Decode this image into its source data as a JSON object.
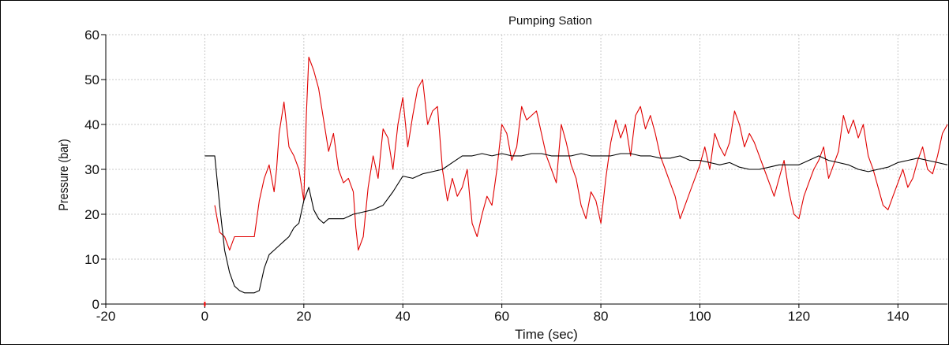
{
  "chart_data": {
    "type": "line",
    "title": "Pumping Sation",
    "xlabel": "Time (sec)",
    "ylabel": "Pressure (bar)",
    "xlim": [
      -20,
      150
    ],
    "ylim": [
      0,
      60
    ],
    "x_ticks": [
      -20,
      0,
      20,
      40,
      60,
      80,
      100,
      120,
      140
    ],
    "y_ticks": [
      0,
      10,
      20,
      30,
      40,
      50,
      60
    ],
    "grid": true,
    "legend": "none",
    "colors": {
      "series_a": "#e00000",
      "series_b": "#000000",
      "grid": "#c8c8c8",
      "origin_marker": "#ff0000"
    },
    "series": [
      {
        "color": "#e00000",
        "x": [
          2,
          3,
          4,
          5,
          6,
          8,
          10,
          11,
          12,
          13,
          14,
          14.5,
          15,
          16,
          17,
          18,
          19,
          20,
          20.5,
          21,
          22,
          23,
          24,
          25,
          26,
          27,
          28,
          29,
          30,
          30.5,
          31,
          32,
          33,
          34,
          35,
          36,
          37,
          38,
          39,
          40,
          41,
          42,
          43,
          44,
          45,
          46,
          47,
          48,
          49,
          50,
          51,
          52,
          53,
          54,
          55,
          56,
          57,
          58,
          59,
          60,
          61,
          62,
          63,
          64,
          65,
          66,
          67,
          68,
          69,
          70,
          71,
          72,
          73,
          74,
          75,
          76,
          77,
          78,
          79,
          80,
          81,
          82,
          83,
          84,
          85,
          86,
          87,
          88,
          89,
          90,
          91,
          92,
          93,
          94,
          95,
          96,
          97,
          98,
          99,
          100,
          101,
          102,
          103,
          104,
          105,
          106,
          107,
          108,
          109,
          110,
          111,
          112,
          113,
          114,
          115,
          116,
          117,
          118,
          119,
          120,
          121,
          122,
          123,
          124,
          125,
          126,
          127,
          128,
          129,
          130,
          131,
          132,
          133,
          134,
          135,
          136,
          137,
          138,
          139,
          140,
          141,
          142,
          143,
          144,
          145,
          146,
          147,
          148,
          149,
          150
        ],
        "y": [
          22,
          16,
          15,
          12,
          15,
          15,
          15,
          23,
          28,
          31,
          25,
          30,
          38,
          45,
          35,
          33,
          30,
          23,
          42,
          55,
          52,
          48,
          41,
          34,
          38,
          30,
          27,
          28,
          25,
          17,
          12,
          15,
          26,
          33,
          28,
          39,
          37,
          30,
          40,
          46,
          35,
          42,
          48,
          50,
          40,
          43,
          44,
          30,
          23,
          28,
          24,
          26,
          30,
          18,
          15,
          20,
          24,
          22,
          30,
          40,
          38,
          32,
          35,
          44,
          41,
          42,
          43,
          38,
          33,
          30,
          27,
          40,
          36,
          31,
          28,
          22,
          19,
          25,
          23,
          18,
          28,
          36,
          41,
          37,
          40,
          33,
          42,
          44,
          39,
          42,
          38,
          33,
          30,
          27,
          24,
          19,
          22,
          25,
          28,
          31,
          35,
          30,
          38,
          35,
          33,
          36,
          43,
          40,
          35,
          38,
          36,
          33,
          30,
          27,
          24,
          28,
          32,
          25,
          20,
          19,
          24,
          27,
          30,
          32,
          35,
          28,
          31,
          34,
          42,
          38,
          41,
          37,
          40,
          33,
          30,
          26,
          22,
          21,
          24,
          27,
          30,
          26,
          28,
          32,
          35,
          30,
          29,
          33,
          38,
          40
        ]
      },
      {
        "color": "#000000",
        "x": [
          0,
          1,
          2,
          3,
          4,
          5,
          6,
          7,
          8,
          9,
          10,
          11,
          12,
          13,
          14,
          15,
          16,
          17,
          18,
          19,
          20,
          21,
          22,
          23,
          24,
          25,
          26,
          27,
          28,
          29,
          30,
          32,
          34,
          36,
          38,
          40,
          42,
          44,
          46,
          48,
          50,
          52,
          54,
          56,
          58,
          60,
          62,
          64,
          66,
          68,
          70,
          72,
          74,
          76,
          78,
          80,
          82,
          84,
          86,
          88,
          90,
          92,
          94,
          96,
          98,
          100,
          102,
          104,
          106,
          108,
          110,
          112,
          114,
          116,
          118,
          120,
          122,
          124,
          126,
          128,
          130,
          132,
          134,
          136,
          138,
          140,
          142,
          144,
          146,
          148,
          150
        ],
        "y": [
          33,
          33,
          33,
          22,
          12,
          7,
          4,
          3,
          2.5,
          2.5,
          2.5,
          3,
          8,
          11,
          12,
          13,
          14,
          15,
          17,
          18,
          23,
          26,
          21,
          19,
          18,
          19,
          19,
          19,
          19,
          19.5,
          20,
          20.5,
          21,
          22,
          25,
          28.5,
          28,
          29,
          29.5,
          30,
          31.5,
          33,
          33,
          33.5,
          33,
          33.5,
          33,
          33,
          33.5,
          33.5,
          33,
          33,
          33,
          33.5,
          33,
          33,
          33,
          33.5,
          33.5,
          33,
          33,
          32.5,
          32.5,
          33,
          32,
          32,
          31.5,
          31,
          31.5,
          30.5,
          30,
          30,
          30.5,
          31,
          31,
          31,
          32,
          33,
          32,
          31.5,
          31,
          30,
          29.5,
          30,
          30.5,
          31.5,
          32,
          32.5,
          32,
          31.5,
          31
        ]
      }
    ]
  }
}
